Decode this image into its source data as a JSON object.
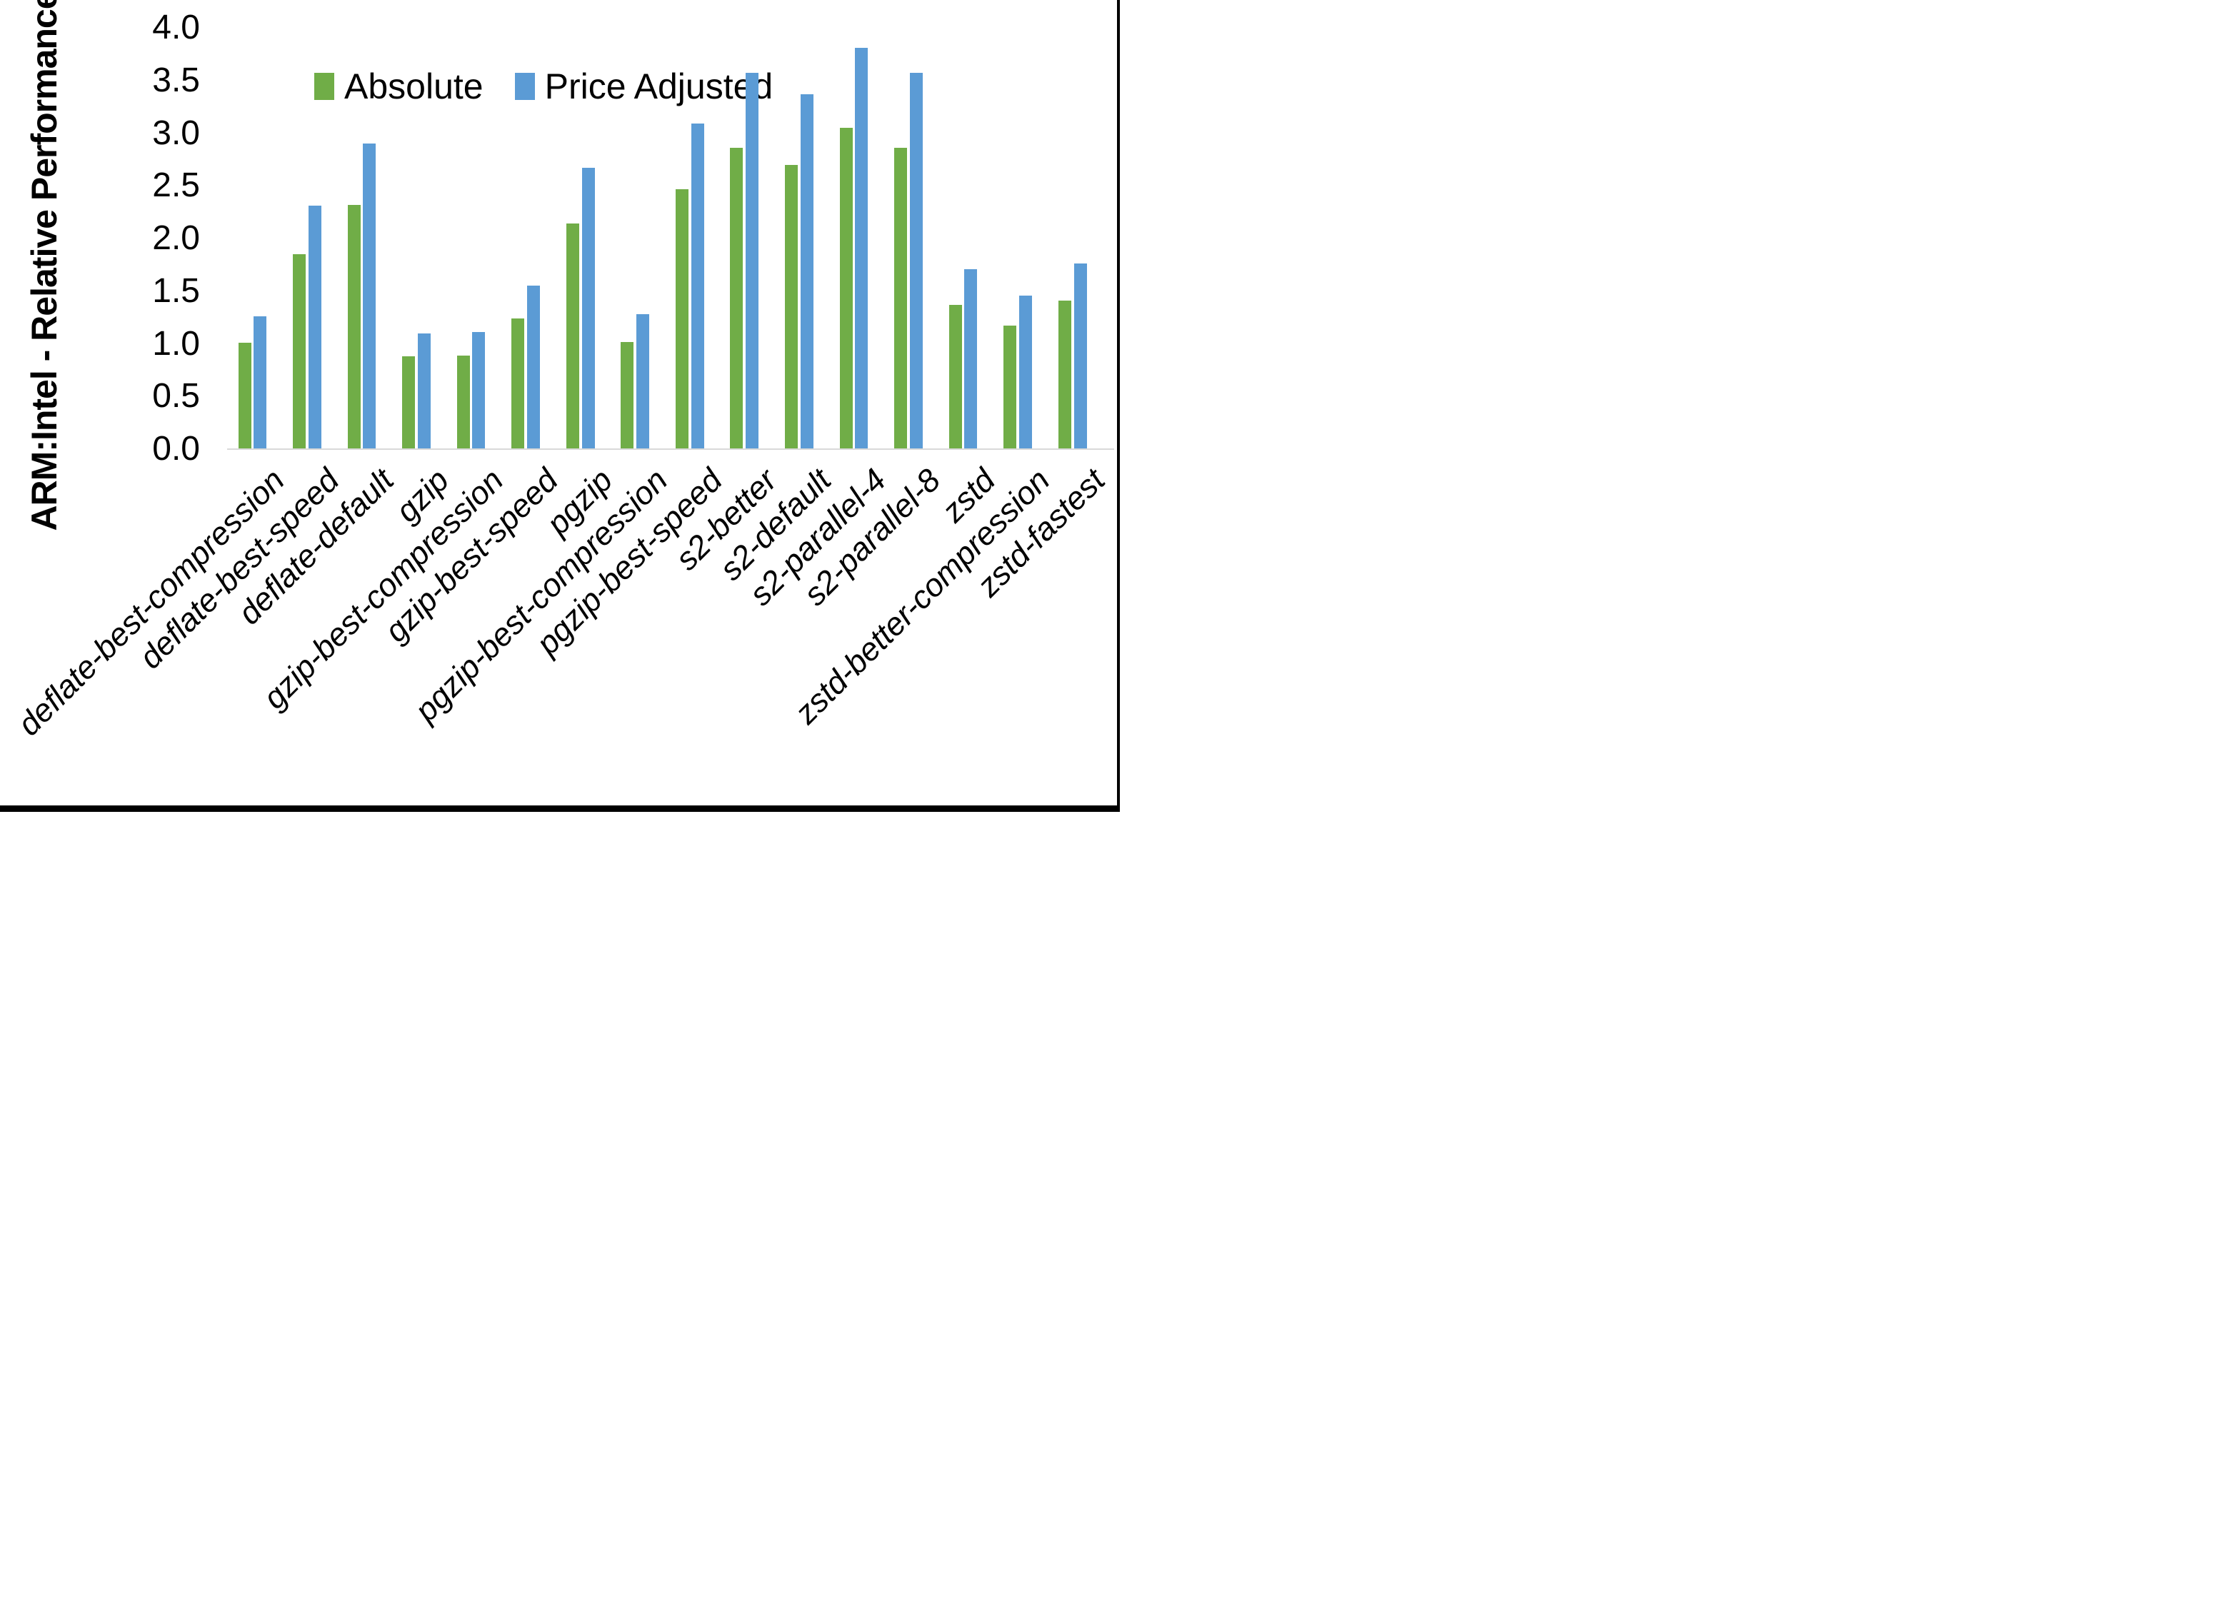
{
  "colors": {
    "absolute_green": "#70AD47",
    "price_adjusted_blue": "#5B9BD5",
    "axis_line": "#D9D9D9",
    "frame_border": "#000000"
  },
  "chart_data": {
    "type": "bar",
    "title": "",
    "ylabel": "ARM:Intel - Relative Performance",
    "xlabel": "",
    "ylim": [
      0.0,
      4.0
    ],
    "ytick_step": 0.5,
    "ytick_labels": [
      "0.0",
      "0.5",
      "1.0",
      "1.5",
      "2.0",
      "2.5",
      "3.0",
      "3.5",
      "4.0"
    ],
    "grid": false,
    "legend_position": "top-center",
    "categories": [
      "deflate-best-compression",
      "deflate-best-speed",
      "deflate-default",
      "gzip",
      "gzip-best-compression",
      "gzip-best-speed",
      "pgzip",
      "pgzip-best-compression",
      "pgzip-best-speed",
      "s2-better",
      "s2-default",
      "s2-parallel-4",
      "s2-parallel-8",
      "zstd",
      "zstd-better-compression",
      "zstd-fastest"
    ],
    "series": [
      {
        "name": "Absolute",
        "color": "#70AD47",
        "values": [
          1.01,
          1.85,
          2.32,
          0.88,
          0.89,
          1.24,
          2.14,
          1.02,
          2.47,
          2.86,
          2.7,
          3.05,
          2.86,
          1.37,
          1.17,
          1.41
        ]
      },
      {
        "name": "Price Adjusted",
        "color": "#5B9BD5",
        "values": [
          1.26,
          2.31,
          2.9,
          1.1,
          1.11,
          1.55,
          2.67,
          1.28,
          3.09,
          3.57,
          3.37,
          3.81,
          3.57,
          1.71,
          1.46,
          1.76
        ]
      }
    ]
  }
}
